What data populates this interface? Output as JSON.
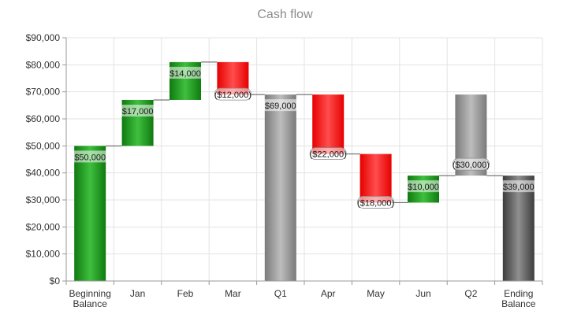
{
  "chart_data": {
    "type": "waterfall",
    "title": "Cash flow",
    "xlabel": "",
    "ylabel": "",
    "ylim": [
      0,
      90000
    ],
    "yticks": [
      0,
      10000,
      20000,
      30000,
      40000,
      50000,
      60000,
      70000,
      80000,
      90000
    ],
    "ytick_labels": [
      "$0",
      "$10,000",
      "$20,000",
      "$30,000",
      "$40,000",
      "$50,000",
      "$60,000",
      "$70,000",
      "$80,000",
      "$90,000"
    ],
    "grid": true,
    "categories": [
      [
        "Beginning",
        "Balance"
      ],
      [
        "Jan"
      ],
      [
        "Feb"
      ],
      [
        "Mar"
      ],
      [
        "Q1"
      ],
      [
        "Apr"
      ],
      [
        "May"
      ],
      [
        "Jun"
      ],
      [
        "Q2"
      ],
      [
        "Ending",
        "Balance"
      ]
    ],
    "bars": [
      {
        "kind": "total",
        "start": 0,
        "end": 50000,
        "value": 50000,
        "label": "$50,000"
      },
      {
        "kind": "increase",
        "start": 50000,
        "end": 67000,
        "value": 17000,
        "label": "$17,000"
      },
      {
        "kind": "increase",
        "start": 67000,
        "end": 81000,
        "value": 14000,
        "label": "$14,000"
      },
      {
        "kind": "decrease",
        "start": 81000,
        "end": 69000,
        "value": -12000,
        "label": "($12,000)"
      },
      {
        "kind": "subtotal",
        "start": 0,
        "end": 69000,
        "value": 69000,
        "label": "$69,000"
      },
      {
        "kind": "decrease",
        "start": 69000,
        "end": 47000,
        "value": -22000,
        "label": "($22,000)"
      },
      {
        "kind": "decrease",
        "start": 47000,
        "end": 29000,
        "value": -18000,
        "label": "($18,000)"
      },
      {
        "kind": "increase",
        "start": 29000,
        "end": 39000,
        "value": 10000,
        "label": "$10,000"
      },
      {
        "kind": "period",
        "start": 69000,
        "end": 39000,
        "value": -30000,
        "label": "($30,000)"
      },
      {
        "kind": "final",
        "start": 0,
        "end": 39000,
        "value": 39000,
        "label": "$39,000"
      }
    ],
    "colors": {
      "increase": "#1a8c1a",
      "decrease": "#ff1a1a",
      "subtotal": "#8c8c8c",
      "final": "#5a5a5a",
      "connector": "#555555",
      "grid": "#e3e3e3",
      "axis": "#999999"
    }
  }
}
